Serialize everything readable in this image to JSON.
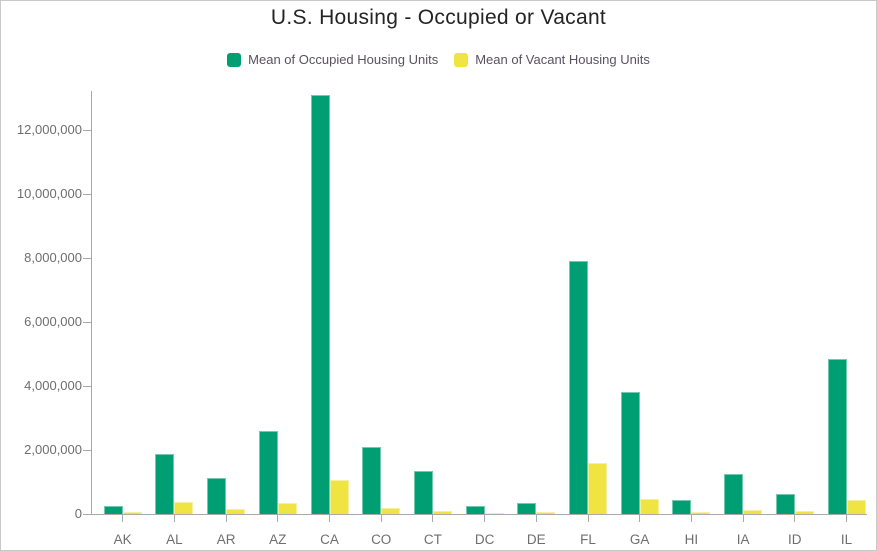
{
  "window": {
    "background": "#ffffff",
    "border_color": "#c9c9c9"
  },
  "chart_data": {
    "type": "bar",
    "title": "U.S. Housing - Occupied or Vacant",
    "xlabel": "",
    "ylabel": "",
    "categories": [
      "AK",
      "AL",
      "AR",
      "AZ",
      "CA",
      "CO",
      "CT",
      "DC",
      "DE",
      "FL",
      "GA",
      "HI",
      "IA",
      "ID",
      "IL"
    ],
    "series": [
      {
        "name": "Mean of Occupied Housing Units",
        "color": "#009e73",
        "edge_color": "#72c9ae",
        "values": [
          250000,
          1860000,
          1130000,
          2600000,
          13100000,
          2080000,
          1350000,
          260000,
          340000,
          7900000,
          3800000,
          440000,
          1250000,
          620000,
          4850000
        ]
      },
      {
        "name": "Mean of Vacant Housing Units",
        "color": "#f0e442",
        "edge_color": "#f6efa0",
        "values": [
          55000,
          360000,
          170000,
          350000,
          1060000,
          180000,
          105000,
          30000,
          65000,
          1590000,
          465000,
          75000,
          115000,
          85000,
          450000
        ]
      }
    ],
    "ylim": [
      0,
      13250000
    ],
    "yticks": [
      0,
      2000000,
      4000000,
      6000000,
      8000000,
      10000000,
      12000000
    ],
    "ytick_labels": [
      "0",
      "2,000,000",
      "4,000,000",
      "6,000,000",
      "8,000,000",
      "10,000,000",
      "12,000,000"
    ],
    "grid": false,
    "legend_position": "top-center"
  },
  "style": {
    "title_color": "#242424",
    "axis_line_color": "#a9a9a9",
    "axis_label_color": "#6e6e6e",
    "legend_text_color": "#56525e"
  }
}
